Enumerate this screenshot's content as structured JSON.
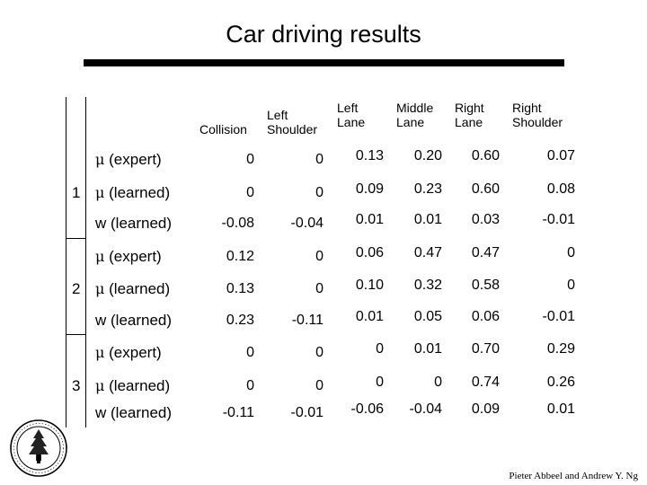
{
  "title": "Car driving results",
  "columns": [
    "Collision",
    "Left\nShoulder",
    "Left\nLane",
    "Middle\nLane",
    "Right\nLane",
    "Right\nShoulder"
  ],
  "groups": [
    {
      "number": "1",
      "rows": [
        {
          "mu": "μ",
          "label": "(expert)",
          "values": [
            "0",
            "0",
            "0.13",
            "0.20",
            "0.60",
            "0.07"
          ]
        },
        {
          "mu": "μ",
          "label": "(learned)",
          "values": [
            "0",
            "0",
            "0.09",
            "0.23",
            "0.60",
            "0.08"
          ]
        },
        {
          "mu": "",
          "label": "w (learned)",
          "values": [
            "-0.08",
            "-0.04",
            "0.01",
            "0.01",
            "0.03",
            "-0.01"
          ]
        }
      ]
    },
    {
      "number": "2",
      "rows": [
        {
          "mu": "μ",
          "label": "(expert)",
          "values": [
            "0.12",
            "0",
            "0.06",
            "0.47",
            "0.47",
            "0"
          ]
        },
        {
          "mu": "μ",
          "label": "(learned)",
          "values": [
            "0.13",
            "0",
            "0.10",
            "0.32",
            "0.58",
            "0"
          ]
        },
        {
          "mu": "",
          "label": "w (learned)",
          "values": [
            "0.23",
            "-0.11",
            "0.01",
            "0.05",
            "0.06",
            "-0.01"
          ]
        }
      ]
    },
    {
      "number": "3",
      "rows": [
        {
          "mu": "μ",
          "label": "(expert)",
          "values": [
            "0",
            "0",
            "0",
            "0.01",
            "0.70",
            "0.29"
          ]
        },
        {
          "mu": "μ",
          "label": "(learned)",
          "values": [
            "0",
            "0",
            "0",
            "0",
            "0.74",
            "0.26"
          ]
        },
        {
          "mu": "",
          "label": "w (learned)",
          "values": [
            "-0.11",
            "-0.01",
            "-0.06",
            "-0.04",
            "0.09",
            "0.01"
          ]
        }
      ]
    }
  ],
  "seal": {
    "icon": "stanford-seal-icon"
  },
  "credit": "Pieter Abbeel and Andrew Y. Ng"
}
